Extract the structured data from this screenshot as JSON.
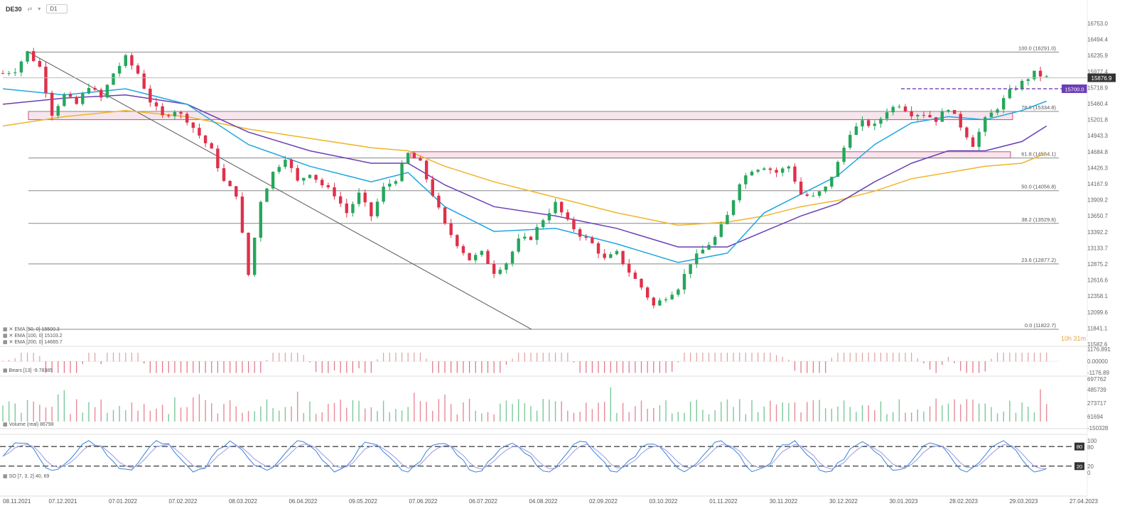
{
  "header": {
    "symbol": "DE30",
    "timeframe": "D1"
  },
  "chart_data": {
    "type": "candlestick",
    "instrument": "DE30",
    "y_ticks": [
      16753.0,
      16494.4,
      16235.9,
      15977.4,
      15718.9,
      15460.4,
      15201.8,
      14943.3,
      14684.8,
      14426.3,
      14167.9,
      13909.2,
      13650.7,
      13392.2,
      13133.7,
      12875.2,
      12616.6,
      12358.1,
      12099.6,
      11841.1,
      11582.6
    ],
    "y_range": [
      11582.6,
      16753.0
    ],
    "x_ticks": [
      "08.11.2021",
      "07.12.2021",
      "07.01.2022",
      "07.02.2022",
      "08.03.2022",
      "06.04.2022",
      "09.05.2022",
      "07.06.2022",
      "06.07.2022",
      "04.08.2022",
      "02.09.2022",
      "03.10.2022",
      "01.11.2022",
      "30.11.2022",
      "30.12.2022",
      "30.01.2023",
      "28.02.2023",
      "29.03.2023",
      "27.04.2023"
    ],
    "current_price": "15876.9",
    "level_marker": "15700.0",
    "countdown": "10h 31m",
    "fibonacci": [
      {
        "label": "100.0 (16291.0)",
        "value": 16291.0
      },
      {
        "label": "78.6 (15334.8)",
        "value": 15334.8
      },
      {
        "label": "61.8 (14584.1)",
        "value": 14584.1
      },
      {
        "label": "50.0 (14056.8)",
        "value": 14056.8
      },
      {
        "label": "38.2 (13529.6)",
        "value": 13529.6
      },
      {
        "label": "23.6 (12877.2)",
        "value": 12877.2
      },
      {
        "label": "0.0 (11822.7)",
        "value": 11822.7
      }
    ],
    "zones": [
      {
        "from": 15201.8,
        "to": 15334.8
      },
      {
        "from": 14584.1,
        "to": 14684.8
      }
    ],
    "price_path": [
      [
        0,
        15950
      ],
      [
        2,
        16000
      ],
      [
        4,
        16291
      ],
      [
        6,
        16050
      ],
      [
        8,
        15300
      ],
      [
        10,
        15600
      ],
      [
        12,
        15450
      ],
      [
        14,
        15750
      ],
      [
        16,
        15550
      ],
      [
        18,
        15950
      ],
      [
        20,
        16200
      ],
      [
        22,
        15950
      ],
      [
        24,
        15500
      ],
      [
        26,
        15250
      ],
      [
        28,
        15350
      ],
      [
        30,
        15200
      ],
      [
        32,
        14950
      ],
      [
        34,
        14700
      ],
      [
        36,
        14200
      ],
      [
        38,
        14000
      ],
      [
        40,
        12700
      ],
      [
        42,
        13900
      ],
      [
        44,
        14350
      ],
      [
        46,
        14600
      ],
      [
        48,
        14200
      ],
      [
        50,
        14350
      ],
      [
        52,
        14150
      ],
      [
        54,
        14000
      ],
      [
        56,
        13700
      ],
      [
        58,
        14000
      ],
      [
        60,
        13650
      ],
      [
        62,
        14100
      ],
      [
        64,
        14250
      ],
      [
        66,
        14650
      ],
      [
        68,
        14500
      ],
      [
        70,
        14000
      ],
      [
        72,
        13500
      ],
      [
        74,
        13200
      ],
      [
        76,
        12950
      ],
      [
        78,
        13050
      ],
      [
        80,
        12750
      ],
      [
        82,
        12900
      ],
      [
        84,
        13250
      ],
      [
        86,
        13300
      ],
      [
        88,
        13600
      ],
      [
        90,
        13850
      ],
      [
        92,
        13550
      ],
      [
        94,
        13350
      ],
      [
        96,
        13200
      ],
      [
        98,
        12950
      ],
      [
        100,
        13050
      ],
      [
        102,
        12750
      ],
      [
        104,
        12500
      ],
      [
        106,
        12200
      ],
      [
        108,
        12350
      ],
      [
        110,
        12500
      ],
      [
        112,
        12900
      ],
      [
        114,
        13100
      ],
      [
        116,
        13300
      ],
      [
        118,
        13650
      ],
      [
        120,
        14200
      ],
      [
        122,
        14400
      ],
      [
        124,
        14450
      ],
      [
        126,
        14350
      ],
      [
        128,
        14450
      ],
      [
        130,
        14000
      ],
      [
        132,
        13950
      ],
      [
        134,
        14100
      ],
      [
        136,
        14500
      ],
      [
        138,
        15000
      ],
      [
        140,
        15150
      ],
      [
        142,
        15100
      ],
      [
        144,
        15350
      ],
      [
        146,
        15450
      ],
      [
        148,
        15300
      ],
      [
        150,
        15300
      ],
      [
        152,
        15200
      ],
      [
        154,
        15400
      ],
      [
        156,
        15100
      ],
      [
        158,
        14800
      ],
      [
        160,
        15200
      ],
      [
        162,
        15400
      ],
      [
        164,
        15650
      ],
      [
        166,
        15800
      ],
      [
        168,
        15950
      ],
      [
        170,
        15880
      ]
    ],
    "ema_50": {
      "label": "EMA [50, 0] 15500.3",
      "points": [
        [
          0,
          15700
        ],
        [
          10,
          15600
        ],
        [
          20,
          15700
        ],
        [
          30,
          15450
        ],
        [
          40,
          14800
        ],
        [
          50,
          14450
        ],
        [
          60,
          14200
        ],
        [
          66,
          14350
        ],
        [
          72,
          13800
        ],
        [
          80,
          13400
        ],
        [
          90,
          13450
        ],
        [
          100,
          13200
        ],
        [
          110,
          12900
        ],
        [
          118,
          13050
        ],
        [
          124,
          13700
        ],
        [
          130,
          14000
        ],
        [
          136,
          14300
        ],
        [
          142,
          14800
        ],
        [
          148,
          15150
        ],
        [
          154,
          15250
        ],
        [
          160,
          15200
        ],
        [
          166,
          15350
        ],
        [
          170,
          15500
        ]
      ]
    },
    "ema_100": {
      "label": "EMA [100, 0] 15103.2",
      "points": [
        [
          0,
          15450
        ],
        [
          10,
          15550
        ],
        [
          20,
          15600
        ],
        [
          30,
          15450
        ],
        [
          40,
          15000
        ],
        [
          50,
          14700
        ],
        [
          60,
          14500
        ],
        [
          66,
          14500
        ],
        [
          72,
          14150
        ],
        [
          80,
          13800
        ],
        [
          90,
          13650
        ],
        [
          100,
          13450
        ],
        [
          110,
          13150
        ],
        [
          118,
          13150
        ],
        [
          124,
          13400
        ],
        [
          130,
          13650
        ],
        [
          136,
          13850
        ],
        [
          142,
          14200
        ],
        [
          148,
          14500
        ],
        [
          154,
          14700
        ],
        [
          160,
          14700
        ],
        [
          166,
          14850
        ],
        [
          170,
          15100
        ]
      ]
    },
    "ema_200": {
      "label": "EMA [200, 0] 14665.7",
      "points": [
        [
          0,
          15100
        ],
        [
          10,
          15250
        ],
        [
          20,
          15350
        ],
        [
          30,
          15250
        ],
        [
          40,
          15050
        ],
        [
          50,
          14900
        ],
        [
          60,
          14750
        ],
        [
          66,
          14700
        ],
        [
          72,
          14450
        ],
        [
          80,
          14200
        ],
        [
          90,
          13950
        ],
        [
          100,
          13700
        ],
        [
          110,
          13500
        ],
        [
          118,
          13550
        ],
        [
          124,
          13650
        ],
        [
          130,
          13800
        ],
        [
          136,
          13900
        ],
        [
          142,
          14050
        ],
        [
          148,
          14250
        ],
        [
          154,
          14350
        ],
        [
          160,
          14450
        ],
        [
          166,
          14500
        ],
        [
          170,
          14665
        ]
      ]
    },
    "bears_label": "Bears [13] -9.78385",
    "bears_ticks": [
      "1176.891",
      "0.00000",
      "-1176.89"
    ],
    "volume_label": "Volume (real) 86798",
    "volume_ticks": [
      "697762",
      "485739",
      "273717",
      "61694",
      "-150328"
    ],
    "so_label": "SO [7, 3, 2] 40, 69",
    "so_ticks": [
      "100",
      "80",
      "20",
      "0"
    ],
    "so_levels": [
      "80",
      "20"
    ]
  }
}
